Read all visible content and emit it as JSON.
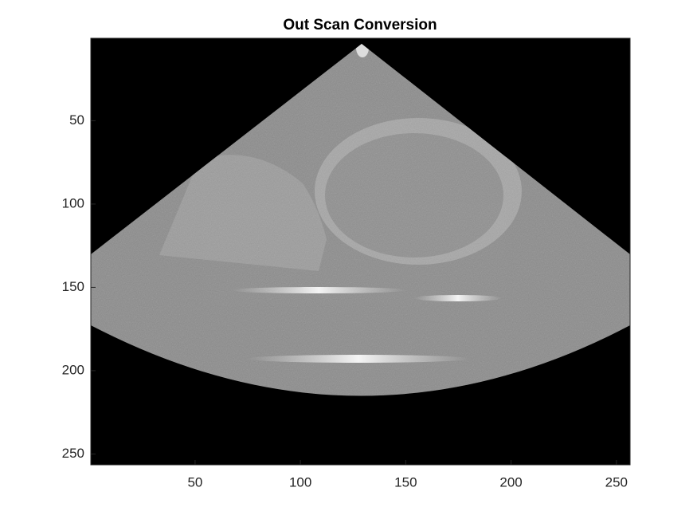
{
  "chart_data": {
    "type": "image",
    "title": "Out Scan Conversion",
    "xlim": [
      0.5,
      256.5
    ],
    "ylim": [
      0.5,
      256.5
    ],
    "y_reversed": true,
    "xticks": [
      50,
      100,
      150,
      200,
      250
    ],
    "yticks": [
      50,
      100,
      150,
      200,
      250
    ]
  }
}
